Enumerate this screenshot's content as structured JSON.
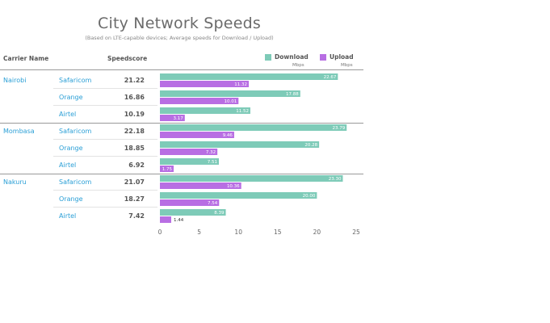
{
  "chart_data": {
    "type": "bar",
    "title": "City Network Speeds",
    "subtitle": "(Based on LTE-capable devices; Average speeds for Download / Upload)",
    "columns": {
      "carrier_header": "Carrier Name",
      "score_header": "Speedscore"
    },
    "series": [
      {
        "name": "Download",
        "unit": "Mbps",
        "color": "#7ecbb8"
      },
      {
        "name": "Upload",
        "unit": "Mbps",
        "color": "#b86ee3"
      }
    ],
    "xlim": [
      0,
      25
    ],
    "xticks": [
      0,
      5,
      10,
      15,
      20,
      25
    ],
    "grid": false,
    "legend": "top-right",
    "groups": [
      {
        "city": "Nairobi",
        "rows": [
          {
            "carrier": "Safaricom",
            "speedscore": "21.22",
            "download": 22.67,
            "upload": 11.32,
            "download_label": "22.67",
            "upload_label": "11.32"
          },
          {
            "carrier": "Orange",
            "speedscore": "16.86",
            "download": 17.88,
            "upload": 10.01,
            "download_label": "17.88",
            "upload_label": "10.01"
          },
          {
            "carrier": "Airtel",
            "speedscore": "10.19",
            "download": 11.52,
            "upload": 3.17,
            "download_label": "11.52",
            "upload_label": "3.17"
          }
        ]
      },
      {
        "city": "Mombasa",
        "rows": [
          {
            "carrier": "Safaricom",
            "speedscore": "22.18",
            "download": 23.79,
            "upload": 9.46,
            "download_label": "23.79",
            "upload_label": "9.46"
          },
          {
            "carrier": "Orange",
            "speedscore": "18.85",
            "download": 20.28,
            "upload": 7.32,
            "download_label": "20.28",
            "upload_label": "7.32"
          },
          {
            "carrier": "Airtel",
            "speedscore": "6.92",
            "download": 7.51,
            "upload": 1.75,
            "download_label": "7.51",
            "upload_label": "1.75"
          }
        ]
      },
      {
        "city": "Nakuru",
        "rows": [
          {
            "carrier": "Safaricom",
            "speedscore": "21.07",
            "download": 23.3,
            "upload": 10.36,
            "download_label": "23.30",
            "upload_label": "10.36"
          },
          {
            "carrier": "Orange",
            "speedscore": "18.27",
            "download": 20.0,
            "upload": 7.54,
            "download_label": "20.00",
            "upload_label": "7.54"
          },
          {
            "carrier": "Airtel",
            "speedscore": "7.42",
            "download": 8.39,
            "upload": 1.44,
            "download_label": "8.39",
            "upload_label": "1.44"
          }
        ]
      }
    ]
  }
}
